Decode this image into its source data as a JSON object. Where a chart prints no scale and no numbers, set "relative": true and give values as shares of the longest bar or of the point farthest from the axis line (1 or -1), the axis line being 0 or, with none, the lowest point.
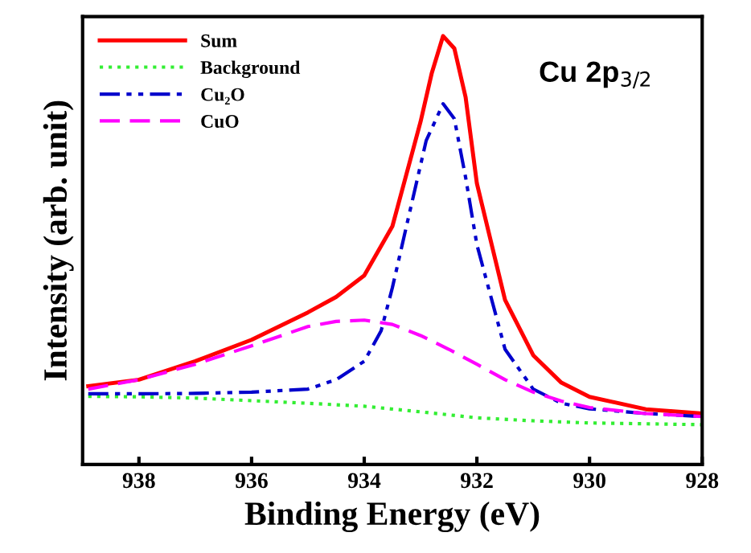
{
  "chart_data": {
    "type": "line",
    "xlabel": "Binding Energy (eV)",
    "ylabel": "Intensity (arb. unit)",
    "relative": true,
    "xlim": [
      939,
      928
    ],
    "xticks": [
      938,
      936,
      934,
      932,
      930,
      928
    ],
    "legend": "top left",
    "grid": false,
    "annotations": [
      "Cu 2p$_{3/2}$"
    ],
    "series": [
      {
        "name": "Sum",
        "color": "#ff0000",
        "line_style": "solid",
        "x": [
          938.9,
          938,
          937,
          936,
          935,
          934.5,
          934,
          933.5,
          933,
          932.8,
          932.6,
          932.4,
          932.2,
          932,
          931.5,
          931,
          930.5,
          930,
          929,
          928
        ],
        "values": [
          0.183,
          0.198,
          0.241,
          0.291,
          0.355,
          0.391,
          0.441,
          0.556,
          0.8,
          0.914,
          1.0,
          0.971,
          0.857,
          0.656,
          0.384,
          0.255,
          0.191,
          0.158,
          0.129,
          0.119
        ]
      },
      {
        "name": "Background",
        "color": "#33ee33",
        "line_style": "dotted",
        "x": [
          938.9,
          938,
          937,
          936,
          935,
          934,
          933,
          932,
          931,
          930,
          929,
          928
        ],
        "values": [
          0.159,
          0.158,
          0.155,
          0.149,
          0.143,
          0.136,
          0.123,
          0.109,
          0.102,
          0.097,
          0.095,
          0.093
        ]
      },
      {
        "name": "Cu₂O",
        "color": "#0000cc",
        "line_style": "dashdot",
        "x": [
          938.9,
          938,
          937,
          936,
          935,
          934.5,
          934,
          933.7,
          933.5,
          933.2,
          932.9,
          932.6,
          932.4,
          932.2,
          932,
          931.5,
          931,
          930.5,
          930,
          929,
          928
        ],
        "values": [
          0.165,
          0.165,
          0.166,
          0.169,
          0.176,
          0.198,
          0.241,
          0.312,
          0.413,
          0.585,
          0.756,
          0.842,
          0.807,
          0.67,
          0.513,
          0.269,
          0.176,
          0.143,
          0.13,
          0.119,
          0.112
        ]
      },
      {
        "name": "CuO",
        "color": "#ff00ff",
        "line_style": "dashed",
        "x": [
          938.9,
          938,
          937,
          936,
          935,
          934.5,
          934,
          933.5,
          933,
          932.5,
          932,
          931.5,
          931,
          930.5,
          930,
          929,
          928
        ],
        "values": [
          0.176,
          0.198,
          0.234,
          0.277,
          0.322,
          0.334,
          0.337,
          0.327,
          0.301,
          0.269,
          0.234,
          0.198,
          0.169,
          0.148,
          0.133,
          0.119,
          0.112
        ]
      }
    ]
  }
}
